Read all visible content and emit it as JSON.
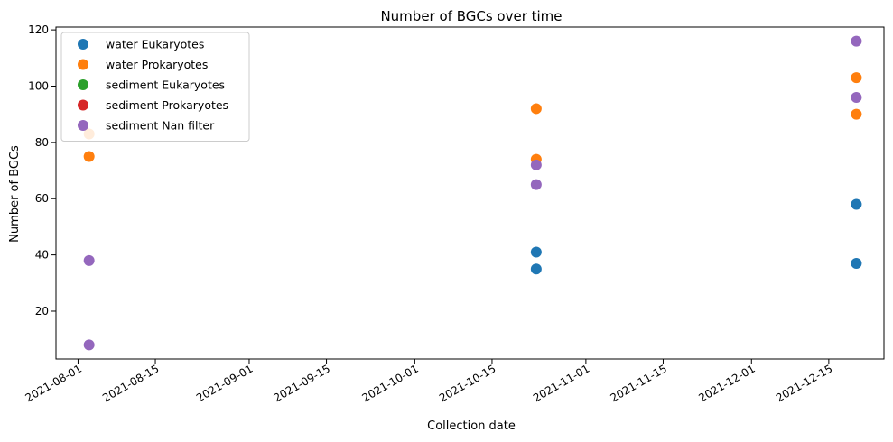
{
  "chart_data": {
    "type": "scatter",
    "title": "Number of BGCs over time",
    "xlabel": "Collection date",
    "ylabel": "Number of BGCs",
    "xlim": [
      "2021-07-28",
      "2021-12-25"
    ],
    "ylim": [
      3,
      121
    ],
    "x_ticks": [
      "2021-08-01",
      "2021-08-15",
      "2021-09-01",
      "2021-09-15",
      "2021-10-01",
      "2021-10-15",
      "2021-11-01",
      "2021-11-15",
      "2021-12-01",
      "2021-12-15"
    ],
    "y_ticks": [
      20,
      40,
      60,
      80,
      100,
      120
    ],
    "legend_position": "top-left",
    "grid": false,
    "series": [
      {
        "name": "water Eukaryotes",
        "color": "#1f77b4",
        "points": [
          {
            "x": "2021-10-23",
            "y": 41
          },
          {
            "x": "2021-10-23",
            "y": 35
          },
          {
            "x": "2021-12-20",
            "y": 58
          },
          {
            "x": "2021-12-20",
            "y": 37
          }
        ]
      },
      {
        "name": "water Prokaryotes",
        "color": "#ff7f0e",
        "points": [
          {
            "x": "2021-08-03",
            "y": 83
          },
          {
            "x": "2021-08-03",
            "y": 75
          },
          {
            "x": "2021-10-23",
            "y": 92
          },
          {
            "x": "2021-10-23",
            "y": 74
          },
          {
            "x": "2021-12-20",
            "y": 103
          },
          {
            "x": "2021-12-20",
            "y": 90
          }
        ]
      },
      {
        "name": "sediment Eukaryotes",
        "color": "#2ca02c",
        "points": []
      },
      {
        "name": "sediment Prokaryotes",
        "color": "#d62728",
        "points": []
      },
      {
        "name": "sediment Nan filter",
        "color": "#9467bd",
        "points": [
          {
            "x": "2021-08-03",
            "y": 38
          },
          {
            "x": "2021-08-03",
            "y": 8
          },
          {
            "x": "2021-10-23",
            "y": 72
          },
          {
            "x": "2021-10-23",
            "y": 65
          },
          {
            "x": "2021-12-20",
            "y": 116
          },
          {
            "x": "2021-12-20",
            "y": 96
          }
        ]
      }
    ]
  }
}
